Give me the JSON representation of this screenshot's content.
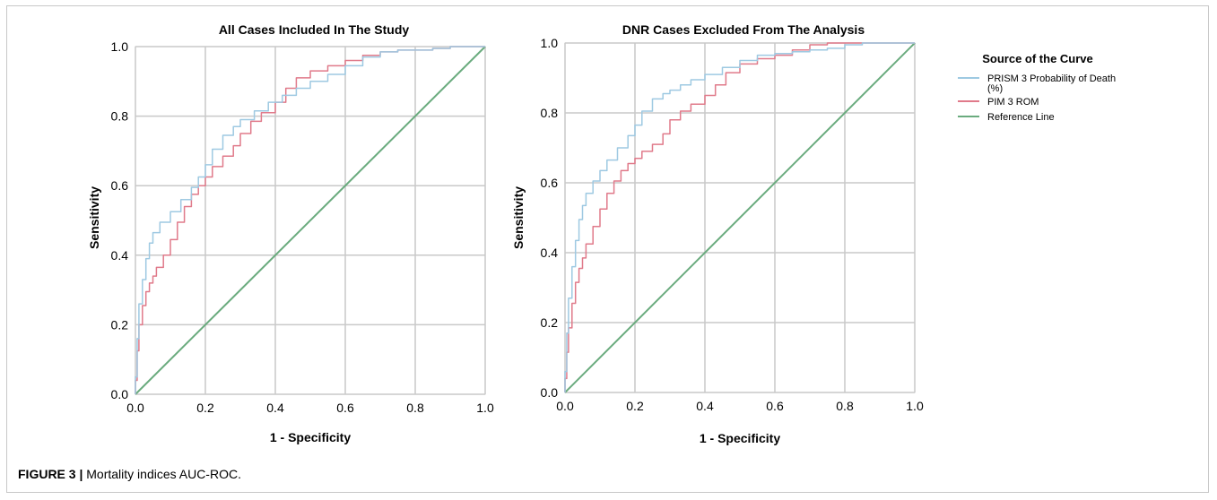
{
  "caption": {
    "label": "FIGURE 3 |",
    "text": "Mortality indices AUC-ROC."
  },
  "legend": {
    "title": "Source of the Curve",
    "entries": [
      {
        "line1": "PRISM 3 Probability of Death",
        "line2": "(%)",
        "color": "#9ec9e2"
      },
      {
        "line1": "PIM 3 ROM",
        "line2": "",
        "color": "#e07a8a"
      },
      {
        "line1": "Reference Line",
        "line2": "",
        "color": "#6aab7e"
      }
    ]
  },
  "chart_data": [
    {
      "type": "line",
      "title": "All Cases Included In The Study",
      "xlabel": "1 - Specificity",
      "ylabel": "Sensitivity",
      "xlim": [
        0,
        1
      ],
      "ylim": [
        0,
        1
      ],
      "xticks": [
        "0.0",
        "0.2",
        "0.4",
        "0.6",
        "0.8",
        "1.0"
      ],
      "yticks": [
        "0.0",
        "0.2",
        "0.4",
        "0.6",
        "0.8",
        "1.0"
      ],
      "grid": true,
      "series": [
        {
          "name": "PRISM 3 Probability of Death (%)",
          "color": "#9ec9e2",
          "x": [
            0,
            0.005,
            0.01,
            0.02,
            0.03,
            0.04,
            0.05,
            0.07,
            0.1,
            0.13,
            0.16,
            0.18,
            0.2,
            0.22,
            0.25,
            0.28,
            0.3,
            0.34,
            0.38,
            0.42,
            0.46,
            0.5,
            0.55,
            0.6,
            0.65,
            0.7,
            0.75,
            0.8,
            0.85,
            0.9,
            0.95,
            1
          ],
          "y": [
            0,
            0.1,
            0.22,
            0.3,
            0.36,
            0.42,
            0.45,
            0.48,
            0.51,
            0.54,
            0.58,
            0.61,
            0.64,
            0.68,
            0.73,
            0.76,
            0.78,
            0.8,
            0.83,
            0.85,
            0.87,
            0.89,
            0.91,
            0.93,
            0.96,
            0.98,
            0.99,
            0.99,
            0.99,
            1,
            1,
            1
          ]
        },
        {
          "name": "PIM 3 ROM",
          "color": "#e07a8a",
          "x": [
            0,
            0.005,
            0.01,
            0.02,
            0.03,
            0.04,
            0.05,
            0.06,
            0.08,
            0.1,
            0.12,
            0.14,
            0.16,
            0.18,
            0.2,
            0.22,
            0.25,
            0.28,
            0.3,
            0.33,
            0.36,
            0.4,
            0.43,
            0.46,
            0.5,
            0.55,
            0.6,
            0.65,
            0.7,
            0.75,
            0.8,
            0.85,
            0.9,
            0.95,
            1
          ],
          "y": [
            0,
            0.08,
            0.17,
            0.23,
            0.28,
            0.31,
            0.33,
            0.35,
            0.38,
            0.42,
            0.47,
            0.52,
            0.56,
            0.59,
            0.61,
            0.64,
            0.67,
            0.7,
            0.73,
            0.77,
            0.8,
            0.82,
            0.86,
            0.9,
            0.92,
            0.94,
            0.95,
            0.97,
            0.98,
            0.99,
            0.99,
            0.99,
            1,
            1,
            1
          ]
        },
        {
          "name": "Reference Line",
          "color": "#6aab7e",
          "x": [
            0,
            1
          ],
          "y": [
            0,
            1
          ]
        }
      ]
    },
    {
      "type": "line",
      "title": "DNR Cases Excluded From The Analysis",
      "xlabel": "1 - Specificity",
      "ylabel": "Sensitivity",
      "xlim": [
        0,
        1
      ],
      "ylim": [
        0,
        1
      ],
      "xticks": [
        "0.0",
        "0.2",
        "0.4",
        "0.6",
        "0.8",
        "1.0"
      ],
      "yticks": [
        "0.0",
        "0.2",
        "0.4",
        "0.6",
        "0.8",
        "1.0"
      ],
      "grid": true,
      "series": [
        {
          "name": "PRISM 3 Probability of Death (%)",
          "color": "#9ec9e2",
          "x": [
            0,
            0.005,
            0.01,
            0.02,
            0.03,
            0.04,
            0.05,
            0.06,
            0.08,
            0.1,
            0.12,
            0.15,
            0.18,
            0.2,
            0.22,
            0.25,
            0.28,
            0.3,
            0.33,
            0.36,
            0.4,
            0.45,
            0.5,
            0.55,
            0.6,
            0.65,
            0.7,
            0.75,
            0.8,
            0.85,
            0.9,
            0.95,
            1
          ],
          "y": [
            0,
            0.12,
            0.22,
            0.32,
            0.4,
            0.47,
            0.52,
            0.55,
            0.59,
            0.62,
            0.65,
            0.68,
            0.72,
            0.75,
            0.78,
            0.83,
            0.85,
            0.86,
            0.87,
            0.89,
            0.9,
            0.92,
            0.94,
            0.96,
            0.97,
            0.97,
            0.98,
            0.98,
            0.99,
            1,
            1,
            1,
            1
          ]
        },
        {
          "name": "PIM 3 ROM",
          "color": "#e07a8a",
          "x": [
            0,
            0.005,
            0.01,
            0.02,
            0.03,
            0.04,
            0.05,
            0.06,
            0.08,
            0.1,
            0.12,
            0.14,
            0.16,
            0.18,
            0.2,
            0.22,
            0.25,
            0.28,
            0.3,
            0.33,
            0.36,
            0.4,
            0.43,
            0.46,
            0.5,
            0.55,
            0.6,
            0.65,
            0.7,
            0.75,
            0.8,
            0.85,
            0.9,
            0.95,
            1
          ],
          "y": [
            0,
            0.08,
            0.15,
            0.22,
            0.29,
            0.34,
            0.37,
            0.4,
            0.45,
            0.5,
            0.55,
            0.59,
            0.62,
            0.65,
            0.66,
            0.68,
            0.7,
            0.72,
            0.76,
            0.8,
            0.81,
            0.84,
            0.86,
            0.9,
            0.93,
            0.95,
            0.96,
            0.97,
            0.99,
            1,
            1,
            1,
            1,
            1,
            1
          ]
        },
        {
          "name": "Reference Line",
          "color": "#6aab7e",
          "x": [
            0,
            1
          ],
          "y": [
            0,
            1
          ]
        }
      ]
    }
  ]
}
